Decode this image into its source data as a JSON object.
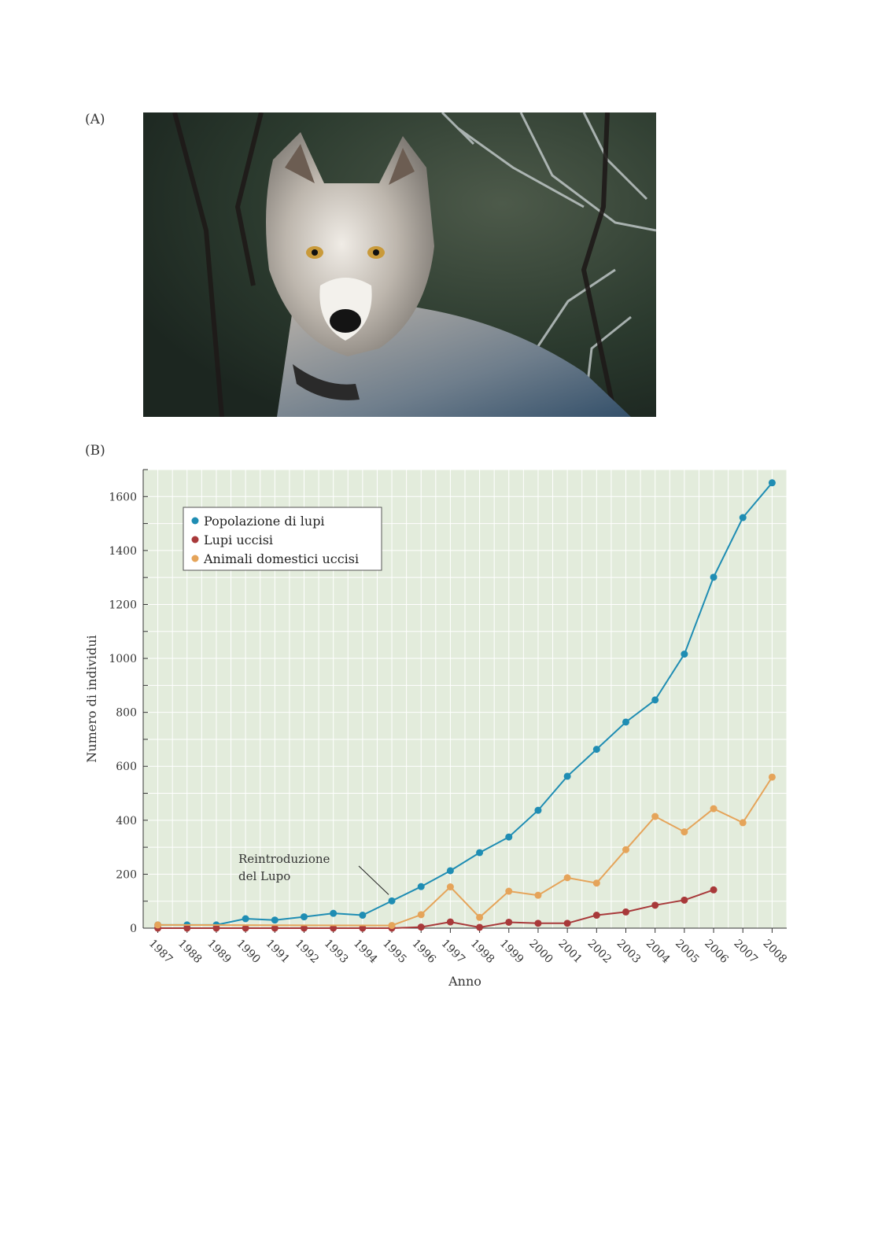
{
  "panels": {
    "a_label": "(A)",
    "b_label": "(B)"
  },
  "photo": {
    "subject": "wolf-photo"
  },
  "chart_data": {
    "type": "line",
    "title": "",
    "xlabel": "Anno",
    "ylabel": "Numero di individui",
    "ylim": [
      0,
      1700
    ],
    "yticks": [
      0,
      200,
      400,
      600,
      800,
      1000,
      1200,
      1400,
      1600
    ],
    "xlim": [
      1986.5,
      2008.5
    ],
    "categories": [
      "1987",
      "1988",
      "1989",
      "1990",
      "1991",
      "1992",
      "1993",
      "1994",
      "1995",
      "1996",
      "1997",
      "1998",
      "1999",
      "2000",
      "2001",
      "2002",
      "2003",
      "2004",
      "2005",
      "2006",
      "2007",
      "2008"
    ],
    "grid": true,
    "background": "#e3ecdc",
    "legend_position": "top-left",
    "series": [
      {
        "name": "Popolazione di lupi",
        "color": "#1f8db3",
        "points": [
          {
            "x": 1987,
            "y": 12
          },
          {
            "x": 1988,
            "y": 12
          },
          {
            "x": 1989,
            "y": 12
          },
          {
            "x": 1990,
            "y": 35
          },
          {
            "x": 1991,
            "y": 30
          },
          {
            "x": 1992,
            "y": 42
          },
          {
            "x": 1993,
            "y": 55
          },
          {
            "x": 1994,
            "y": 48
          },
          {
            "x": 1995,
            "y": 101
          },
          {
            "x": 1996,
            "y": 154
          },
          {
            "x": 1997,
            "y": 213
          },
          {
            "x": 1998,
            "y": 280
          },
          {
            "x": 1999,
            "y": 338
          },
          {
            "x": 2000,
            "y": 437
          },
          {
            "x": 2001,
            "y": 563
          },
          {
            "x": 2002,
            "y": 663
          },
          {
            "x": 2003,
            "y": 764
          },
          {
            "x": 2004,
            "y": 846
          },
          {
            "x": 2005,
            "y": 1016
          },
          {
            "x": 2006,
            "y": 1301
          },
          {
            "x": 2007,
            "y": 1522
          },
          {
            "x": 2008,
            "y": 1651
          }
        ]
      },
      {
        "name": "Lupi uccisi",
        "color": "#a8393a",
        "points": [
          {
            "x": 1987,
            "y": 0
          },
          {
            "x": 1988,
            "y": 0
          },
          {
            "x": 1989,
            "y": 0
          },
          {
            "x": 1990,
            "y": 0
          },
          {
            "x": 1991,
            "y": 0
          },
          {
            "x": 1992,
            "y": 0
          },
          {
            "x": 1993,
            "y": 0
          },
          {
            "x": 1994,
            "y": 0
          },
          {
            "x": 1995,
            "y": 0
          },
          {
            "x": 1996,
            "y": 4
          },
          {
            "x": 1997,
            "y": 23
          },
          {
            "x": 1998,
            "y": 3
          },
          {
            "x": 1999,
            "y": 22
          },
          {
            "x": 2000,
            "y": 18
          },
          {
            "x": 2001,
            "y": 18
          },
          {
            "x": 2002,
            "y": 48
          },
          {
            "x": 2003,
            "y": 60
          },
          {
            "x": 2004,
            "y": 85
          },
          {
            "x": 2005,
            "y": 104
          },
          {
            "x": 2006,
            "y": 142
          }
        ]
      },
      {
        "name": "Animali domestici uccisi",
        "color": "#e5a45a",
        "points": [
          {
            "x": 1987,
            "y": 12
          },
          {
            "x": 1995,
            "y": 10
          },
          {
            "x": 1996,
            "y": 50
          },
          {
            "x": 1997,
            "y": 153
          },
          {
            "x": 1998,
            "y": 40
          },
          {
            "x": 1999,
            "y": 137
          },
          {
            "x": 2000,
            "y": 122
          },
          {
            "x": 2001,
            "y": 187
          },
          {
            "x": 2002,
            "y": 167
          },
          {
            "x": 2003,
            "y": 291
          },
          {
            "x": 2004,
            "y": 414
          },
          {
            "x": 2005,
            "y": 357
          },
          {
            "x": 2006,
            "y": 443
          },
          {
            "x": 2007,
            "y": 391
          },
          {
            "x": 2008,
            "y": 560
          }
        ]
      }
    ],
    "annotations": [
      {
        "text_lines": [
          "Reintroduzione",
          "del Lupo"
        ],
        "points_to": {
          "x": 1995,
          "y": 101
        }
      }
    ]
  }
}
